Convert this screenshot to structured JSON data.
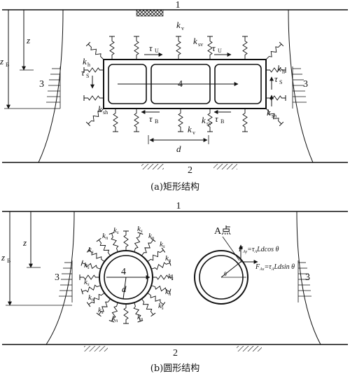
{
  "panel_a": {
    "caption": "(a)矩形结构",
    "label_top": "1",
    "label_bottom": "2",
    "label_left": "3",
    "label_right": "3",
    "label_center": "4",
    "z": "z",
    "z_b": "z",
    "z_b_sub": "B",
    "k_v_top": "k",
    "k_v_top_sub": "v",
    "k_sv_top": "k",
    "k_sv_top_sub": "sv",
    "tau_u_left": "τ",
    "tau_u_left_sub": "U",
    "tau_u_right": "τ",
    "tau_u_right_sub": "U",
    "k_h_left": "k",
    "k_h_left_sub": "h",
    "k_h_right": "k",
    "k_h_right_sub": "h",
    "tau_s_left": "τ",
    "tau_s_left_sub": "S",
    "tau_s_right": "τ",
    "tau_s_right_sub": "S",
    "k_sh_left": "k",
    "k_sh_left_sub": "sh",
    "k_sh_right": "k",
    "k_sh_right_sub": "sh",
    "tau_b_left": "τ",
    "tau_b_left_sub": "B",
    "tau_b_right": "τ",
    "tau_b_right_sub": "B",
    "k_sv_bottom": "k",
    "k_sv_bottom_sub": "sv",
    "k_v_bottom": "k",
    "k_v_bottom_sub": "v",
    "d": "d"
  },
  "panel_b": {
    "caption": "(b)圆形结构",
    "label_top": "1",
    "label_bottom": "2",
    "label_left": "3",
    "label_right": "3",
    "label_center": "4",
    "z": "z",
    "z_b": "z",
    "z_b_sub": "B",
    "d": "d",
    "k_n": "k",
    "k_n_sub": "n",
    "k_s": "k",
    "k_s_sub": "s",
    "point_a": "A点",
    "f_ay": "F",
    "f_ay_sub": "Ay",
    "f_ay_expr": "=τ",
    "f_ay_expr_sub": "A",
    "f_ay_tail": "Ldcos θ",
    "f_ax": "F",
    "f_ax_sub": "Ax",
    "f_ax_expr": "=τ",
    "f_ax_expr_sub": "A",
    "f_ax_tail": "Ldsin θ",
    "theta": "θ"
  }
}
